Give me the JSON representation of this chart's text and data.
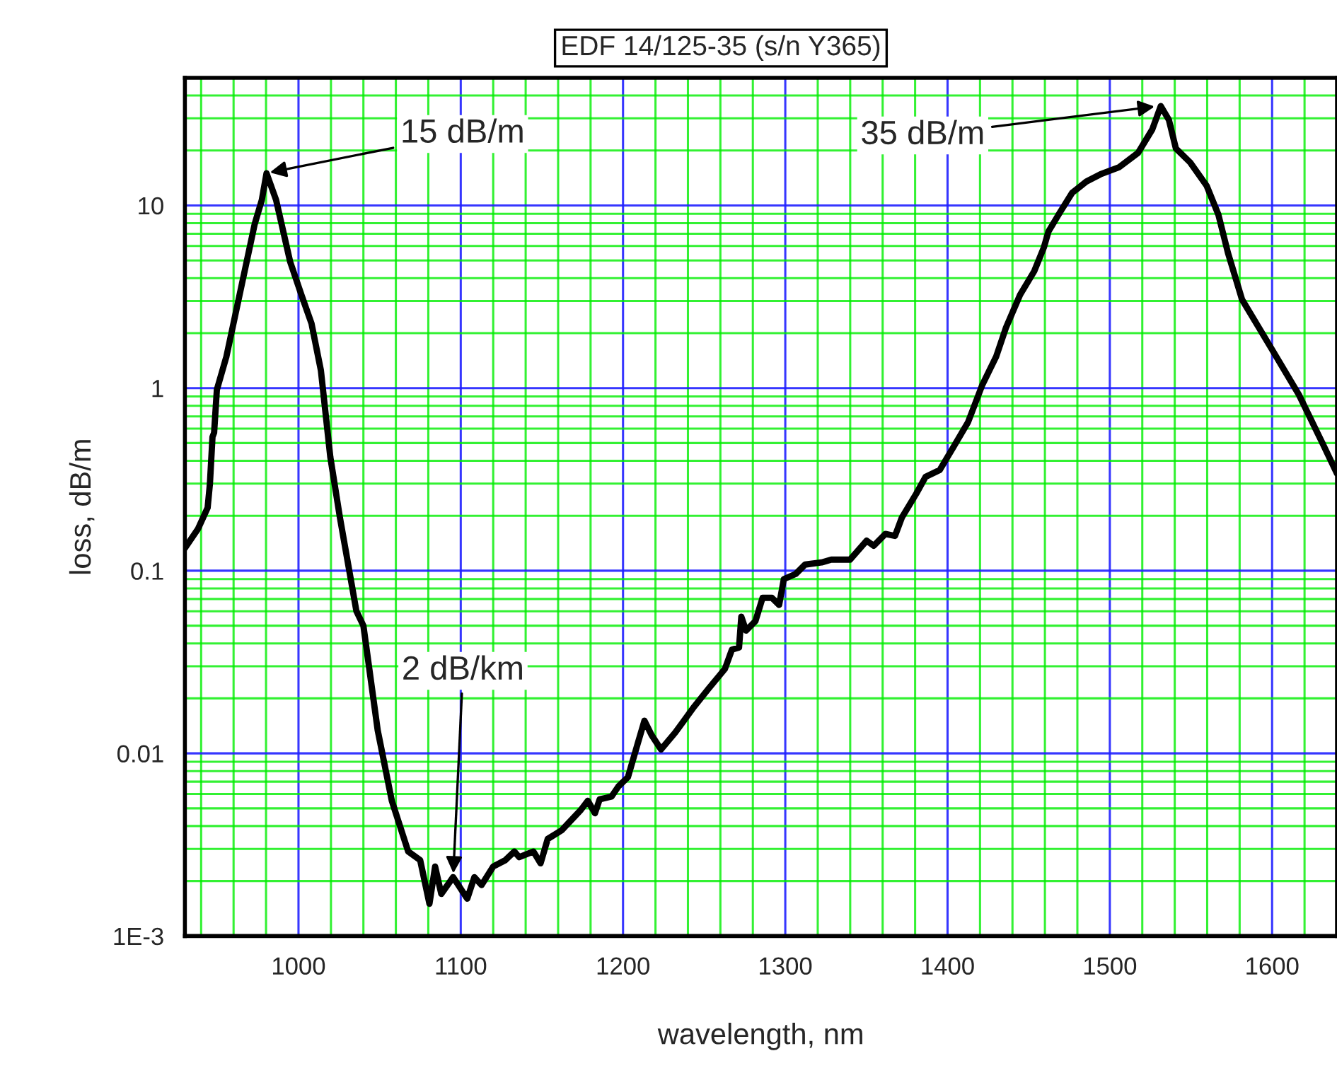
{
  "chart_data": {
    "type": "line",
    "title": "EDF 14/125-35 (s/n Y365)",
    "xlabel": "wavelength, nm",
    "ylabel": "loss, dB/m",
    "log": true,
    "grid": true,
    "line_style": "solid",
    "marker": "none",
    "xlim": [
      930,
      1640
    ],
    "xticks": [
      {
        "value": 940,
        "label": null
      },
      {
        "value": 960,
        "label": null
      },
      {
        "value": 980,
        "label": null
      },
      1000,
      {
        "value": 1020,
        "label": null
      },
      {
        "value": 1040,
        "label": null
      },
      {
        "value": 1060,
        "label": null
      },
      {
        "value": 1080,
        "label": null
      },
      1100,
      {
        "value": 1120,
        "label": null
      },
      {
        "value": 1140,
        "label": null
      },
      {
        "value": 1160,
        "label": null
      },
      {
        "value": 1180,
        "label": null
      },
      1200,
      {
        "value": 1220,
        "label": null
      },
      {
        "value": 1240,
        "label": null
      },
      {
        "value": 1260,
        "label": null
      },
      {
        "value": 1280,
        "label": null
      },
      1300,
      {
        "value": 1320,
        "label": null
      },
      {
        "value": 1340,
        "label": null
      },
      {
        "value": 1360,
        "label": null
      },
      {
        "value": 1380,
        "label": null
      },
      1400,
      {
        "value": 1420,
        "label": null
      },
      {
        "value": 1440,
        "label": null
      },
      {
        "value": 1460,
        "label": null
      },
      {
        "value": 1480,
        "label": null
      },
      1500,
      {
        "value": 1520,
        "label": null
      },
      {
        "value": 1540,
        "label": null
      },
      {
        "value": 1560,
        "label": null
      },
      {
        "value": 1580,
        "label": null
      },
      1600,
      {
        "value": 1620,
        "label": null
      },
      {
        "value": 1640,
        "label": null
      }
    ],
    "ylim": [
      0.001,
      50
    ],
    "yticks": [
      {
        "value": 0.001,
        "label": "1E-3"
      },
      {
        "value": 0.002,
        "label": null
      },
      {
        "value": 0.003,
        "label": null
      },
      {
        "value": 0.004,
        "label": null
      },
      {
        "value": 0.005,
        "label": null
      },
      {
        "value": 0.006,
        "label": null
      },
      {
        "value": 0.007,
        "label": null
      },
      {
        "value": 0.008,
        "label": null
      },
      {
        "value": 0.009,
        "label": null
      },
      0.01,
      {
        "value": 0.02,
        "label": null
      },
      {
        "value": 0.03,
        "label": null
      },
      {
        "value": 0.04,
        "label": null
      },
      {
        "value": 0.05,
        "label": null
      },
      {
        "value": 0.06,
        "label": null
      },
      {
        "value": 0.07,
        "label": null
      },
      {
        "value": 0.08,
        "label": null
      },
      {
        "value": 0.09,
        "label": null
      },
      0.1,
      {
        "value": 0.2,
        "label": null
      },
      {
        "value": 0.3,
        "label": null
      },
      {
        "value": 0.4,
        "label": null
      },
      {
        "value": 0.5,
        "label": null
      },
      {
        "value": 0.6,
        "label": null
      },
      {
        "value": 0.7,
        "label": null
      },
      {
        "value": 0.8,
        "label": null
      },
      {
        "value": 0.9,
        "label": null
      },
      1,
      {
        "value": 2,
        "label": null
      },
      {
        "value": 3,
        "label": null
      },
      {
        "value": 4,
        "label": null
      },
      {
        "value": 5,
        "label": null
      },
      {
        "value": 6,
        "label": null
      },
      {
        "value": 7,
        "label": null
      },
      {
        "value": 8,
        "label": null
      },
      {
        "value": 9,
        "label": null
      },
      10,
      {
        "value": 20,
        "label": null
      },
      {
        "value": 30,
        "label": null
      },
      {
        "value": 40,
        "label": null
      }
    ],
    "series": [
      {
        "color": "#000000",
        "x": [
          930,
          938,
          944,
          945.4,
          947,
          948,
          949.7,
          955.6,
          964.3,
          973,
          977.4,
          980.3,
          986.2,
          994.9,
          1002,
          1008,
          1013.8,
          1019.6,
          1025.5,
          1035.7,
          1040,
          1048.8,
          1057.5,
          1067.6,
          1075,
          1080.7,
          1084.2,
          1088,
          1095.3,
          1104,
          1108.4,
          1112.8,
          1120,
          1127.4,
          1133,
          1136,
          1144.8,
          1149.2,
          1153.6,
          1162.3,
          1174,
          1178.3,
          1182.7,
          1185.6,
          1192.9,
          1197.2,
          1203,
          1208.9,
          1213.2,
          1217.6,
          1223.4,
          1232.2,
          1243.8,
          1252.5,
          1262.8,
          1267.1,
          1271.5,
          1272.9,
          1275.8,
          1281.6,
          1286,
          1291.8,
          1296.2,
          1299.1,
          1306.4,
          1312.2,
          1322.4,
          1328.3,
          1339.9,
          1350.1,
          1354.5,
          1361.7,
          1367.6,
          1371.9,
          1380.7,
          1386.4,
          1395.2,
          1403.9,
          1412.6,
          1421.4,
          1430,
          1435.9,
          1444.7,
          1453.4,
          1459.3,
          1462.2,
          1469.4,
          1476.7,
          1485.5,
          1494.2,
          1505.8,
          1517.4,
          1526.2,
          1531.4,
          1536.4,
          1540.7,
          1549.5,
          1559.7,
          1566.9,
          1572.8,
          1581.5,
          1599,
          1616.5,
          1631,
          1640
        ],
        "values": [
          0.133,
          0.169,
          0.221,
          0.298,
          0.54,
          0.57,
          0.98,
          1.49,
          3.43,
          7.9,
          10.7,
          15,
          10.7,
          4.9,
          3.2,
          2.26,
          1.25,
          0.42,
          0.196,
          0.06,
          0.05,
          0.0134,
          0.0055,
          0.0029,
          0.0026,
          0.0015,
          0.0024,
          0.0017,
          0.0021,
          0.0016,
          0.0021,
          0.0019,
          0.0024,
          0.0026,
          0.0029,
          0.0027,
          0.0029,
          0.0025,
          0.0034,
          0.0038,
          0.0049,
          0.0055,
          0.0047,
          0.0056,
          0.0058,
          0.0066,
          0.0074,
          0.0112,
          0.0151,
          0.0126,
          0.0105,
          0.013,
          0.018,
          0.0225,
          0.029,
          0.037,
          0.038,
          0.056,
          0.047,
          0.053,
          0.071,
          0.071,
          0.065,
          0.09,
          0.096,
          0.108,
          0.111,
          0.115,
          0.115,
          0.146,
          0.137,
          0.159,
          0.155,
          0.196,
          0.264,
          0.326,
          0.356,
          0.48,
          0.65,
          1.04,
          1.49,
          2.13,
          3.24,
          4.36,
          5.87,
          7.2,
          9.2,
          11.7,
          13.5,
          14.8,
          16.2,
          19.4,
          26.1,
          35,
          29.4,
          20.5,
          17.2,
          12.8,
          8.9,
          5.5,
          3.05,
          1.68,
          0.92,
          0.5,
          0.34
        ]
      }
    ],
    "annotations": [
      {
        "text": "15 dB/m",
        "x": 980,
        "y": 15
      },
      {
        "text": "35 dB/m",
        "x": 1530,
        "y": 35
      },
      {
        "text": "2 dB/km",
        "x": 1095.3,
        "y": 0.0021
      }
    ]
  }
}
